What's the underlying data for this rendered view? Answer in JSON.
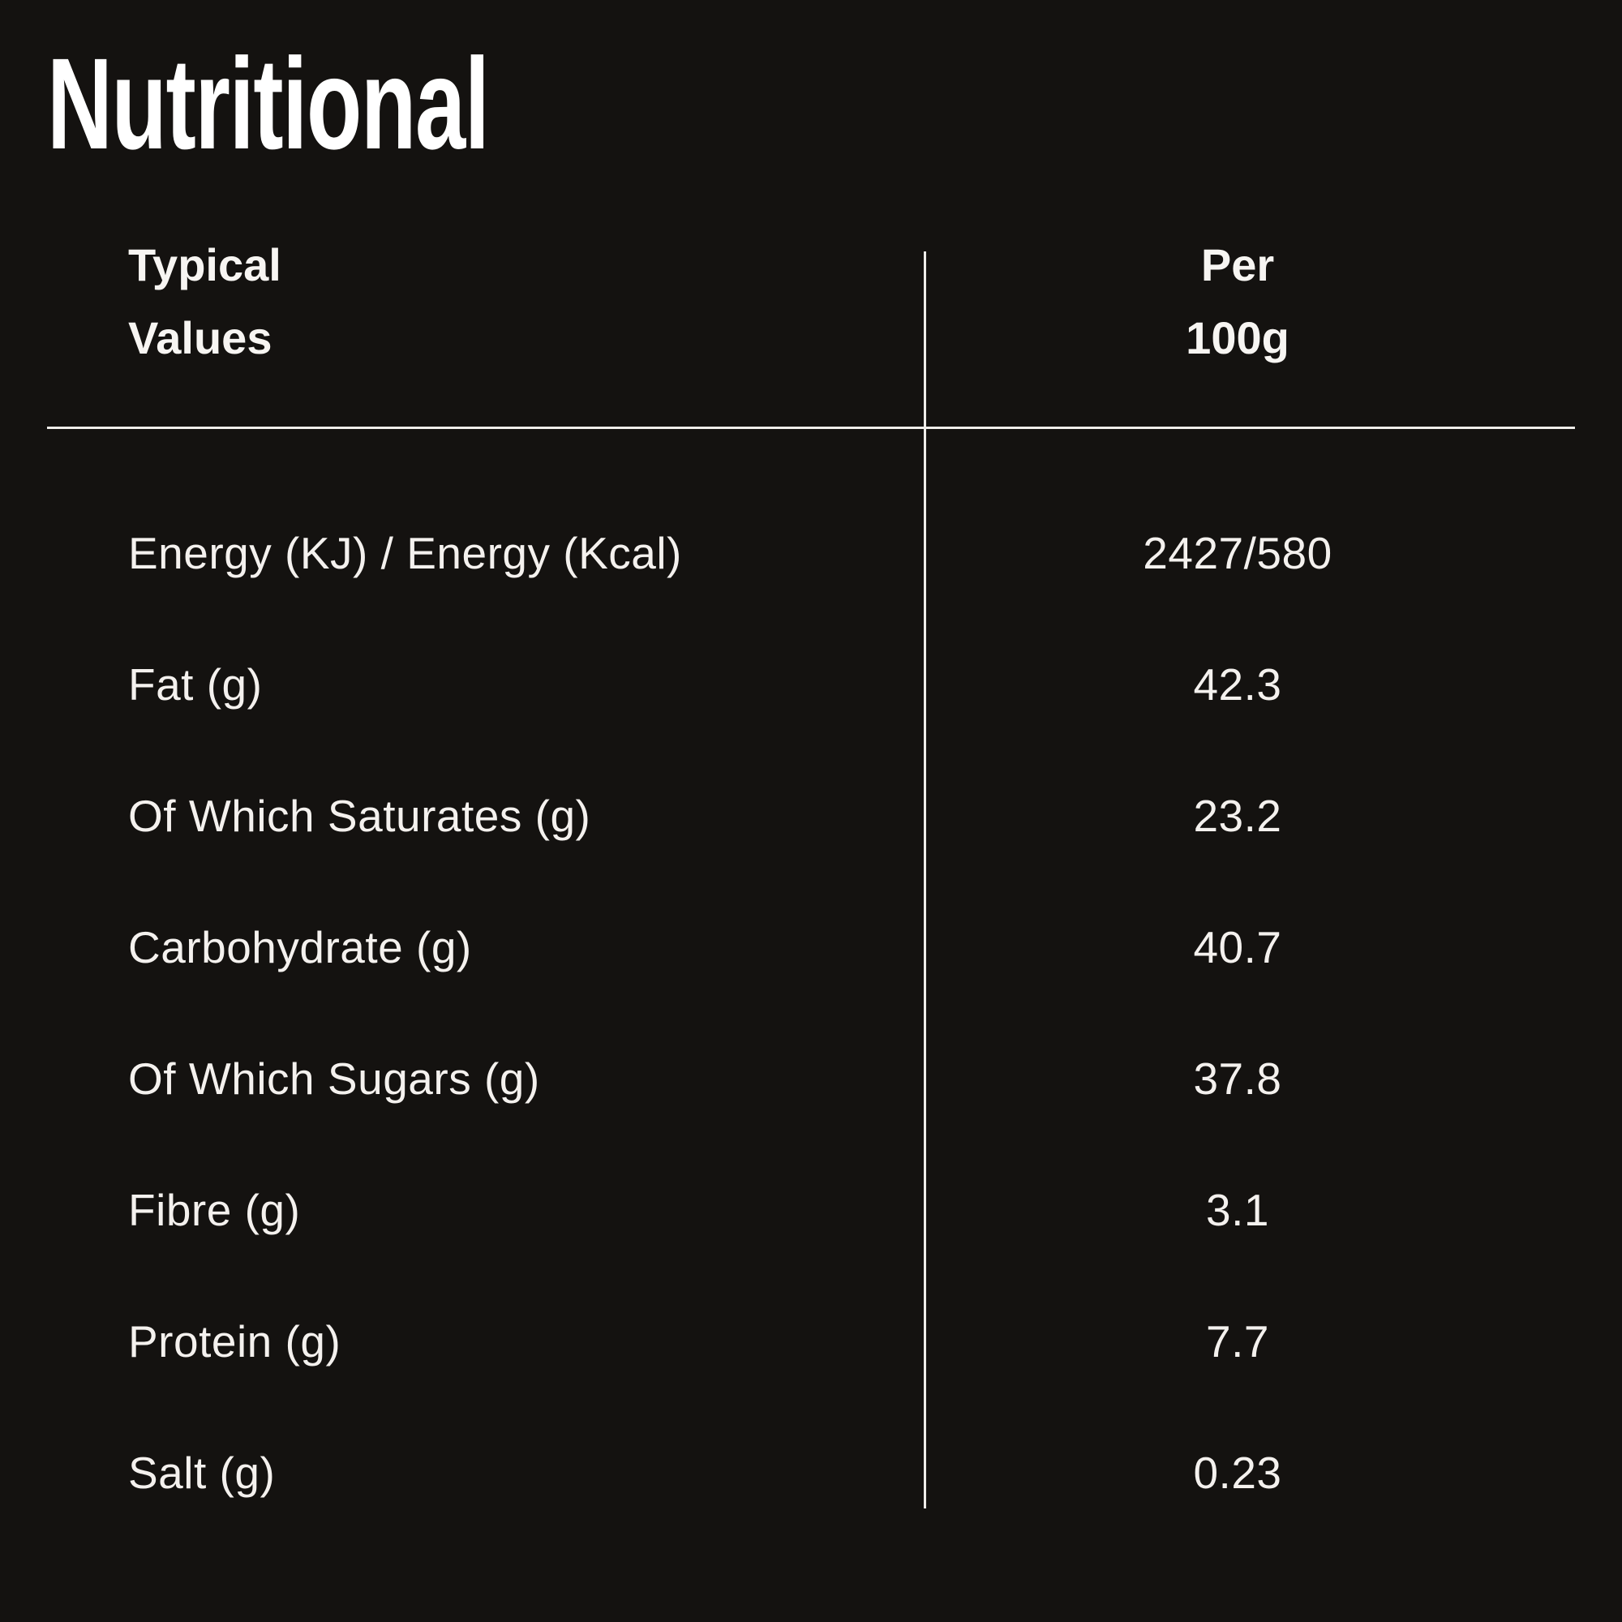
{
  "page": {
    "title": "Nutritional"
  },
  "colors": {
    "background": "#141210",
    "title_text": "#ffffff",
    "body_text": "#f4f1ee",
    "rule": "#efedea"
  },
  "table": {
    "header": {
      "col1_line1": "Typical",
      "col1_line2": "Values",
      "col2_line1": "Per",
      "col2_line2": "100g"
    },
    "rows": [
      {
        "label": "Energy (KJ) / Energy (Kcal)",
        "value": "2427/580"
      },
      {
        "label": "Fat (g)",
        "value": "42.3"
      },
      {
        "label": "Of Which Saturates (g)",
        "value": "23.2"
      },
      {
        "label": "Carbohydrate (g)",
        "value": "40.7"
      },
      {
        "label": "Of Which Sugars (g)",
        "value": "37.8"
      },
      {
        "label": "Fibre (g)",
        "value": "3.1"
      },
      {
        "label": "Protein (g)",
        "value": "7.7"
      },
      {
        "label": "Salt (g)",
        "value": "0.23"
      }
    ]
  }
}
